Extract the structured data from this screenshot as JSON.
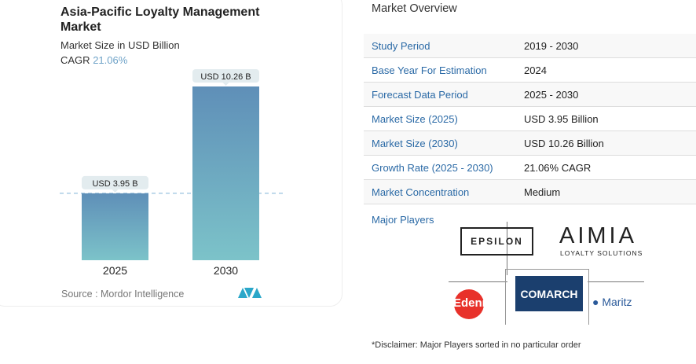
{
  "chart_data": {
    "type": "bar",
    "title": "Asia-Pacific Loyalty Management Market",
    "subtitle": "Market Size in USD Billion",
    "cagr_label": "CAGR",
    "cagr_value": "21.06%",
    "categories": [
      "2025",
      "2030"
    ],
    "values": [
      3.95,
      10.26
    ],
    "data_labels": [
      "USD 3.95 B",
      "USD 10.26 B"
    ],
    "ylim": [
      0,
      10.26
    ],
    "grid": false,
    "bar_color_top": "#5f8fb8",
    "bar_color_bottom": "#7cc3c9",
    "source": "Source :  Mordor Intelligence"
  },
  "overview": {
    "heading": "Market Overview",
    "rows": [
      {
        "label": "Study Period",
        "value": "2019 - 2030"
      },
      {
        "label": "Base Year For Estimation",
        "value": "2024"
      },
      {
        "label": "Forecast Data Period",
        "value": "2025 - 2030"
      },
      {
        "label": "Market Size (2025)",
        "value": "USD 3.95 Billion"
      },
      {
        "label": "Market Size (2030)",
        "value": "USD 10.26 Billion"
      },
      {
        "label": "Growth Rate (2025 - 2030)",
        "value": "21.06% CAGR"
      },
      {
        "label": "Market Concentration",
        "value": "Medium"
      }
    ],
    "major_players_label": "Major Players",
    "players": [
      "EPSILON",
      "AIMIA",
      "LOYALTY SOLUTIONS",
      "Edenred",
      "COMARCH",
      "Maritz"
    ],
    "disclaimer": "*Disclaimer: Major Players sorted in no particular order"
  }
}
